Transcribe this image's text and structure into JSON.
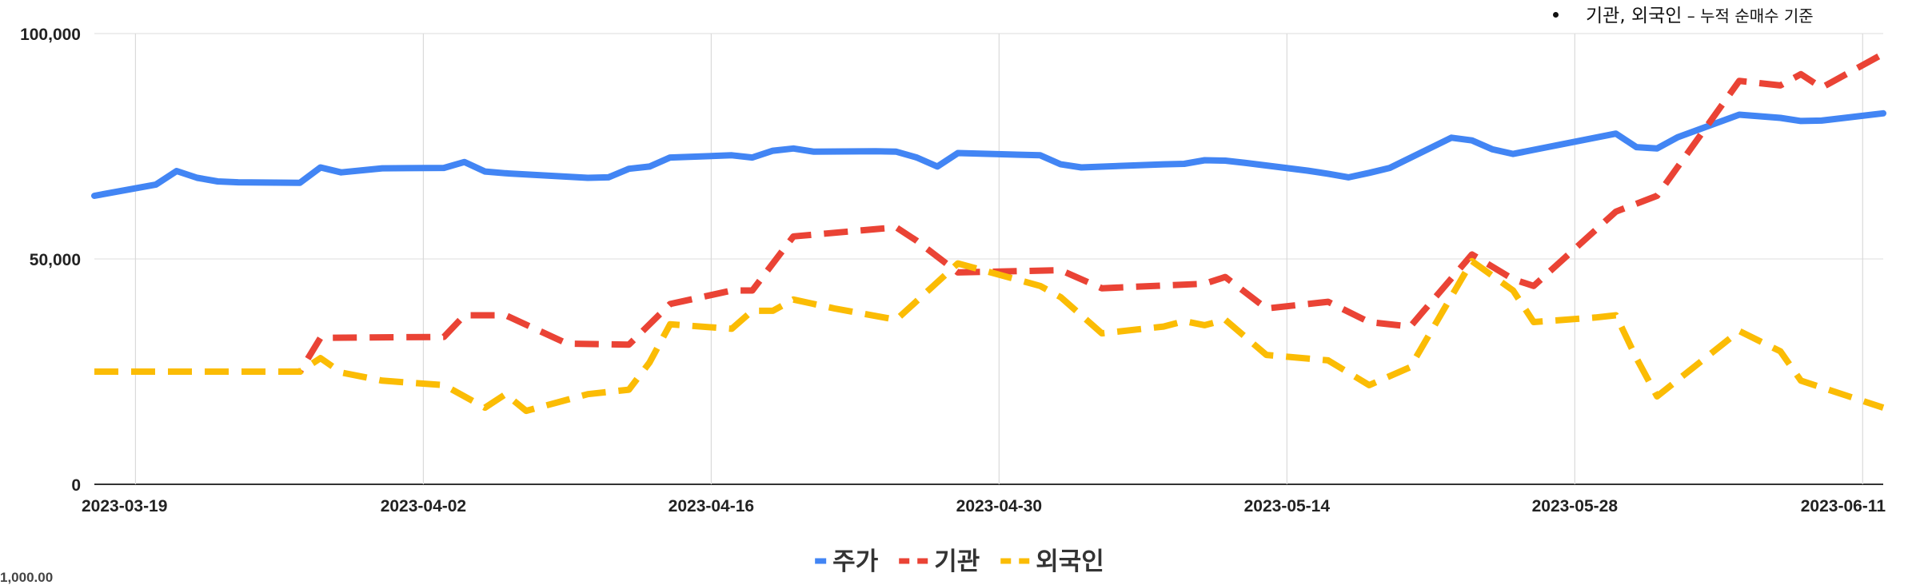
{
  "note": {
    "main": "기관, 외국인",
    "sep": " – ",
    "sub": "누적 순매수 기준"
  },
  "cut_label": "1,000.00",
  "chart_data": {
    "type": "line",
    "title": "",
    "xlabel": "",
    "ylabel": "",
    "ylim": [
      0,
      100000
    ],
    "y_ticks": [
      0,
      50000,
      100000
    ],
    "y_tick_labels": [
      "0",
      "50,000",
      "100,000"
    ],
    "x_range": [
      "2023-03-17",
      "2023-06-12"
    ],
    "x_ticks": [
      "2023-03-19",
      "2023-04-02",
      "2023-04-16",
      "2023-04-30",
      "2023-05-14",
      "2023-05-28",
      "2023-06-11"
    ],
    "grid": true,
    "legend_position": "bottom",
    "series": [
      {
        "name": "주가",
        "color": "#4285F4",
        "dash": "solid",
        "points": [
          [
            "2023-03-17",
            64000
          ],
          [
            "2023-03-20",
            66500
          ],
          [
            "2023-03-21",
            69500
          ],
          [
            "2023-03-22",
            68000
          ],
          [
            "2023-03-23",
            67200
          ],
          [
            "2023-03-24",
            67000
          ],
          [
            "2023-03-27",
            66900
          ],
          [
            "2023-03-28",
            70300
          ],
          [
            "2023-03-29",
            69200
          ],
          [
            "2023-03-31",
            70100
          ],
          [
            "2023-04-03",
            70200
          ],
          [
            "2023-04-04",
            71500
          ],
          [
            "2023-04-05",
            69400
          ],
          [
            "2023-04-06",
            69000
          ],
          [
            "2023-04-10",
            68000
          ],
          [
            "2023-04-11",
            68100
          ],
          [
            "2023-04-12",
            70000
          ],
          [
            "2023-04-13",
            70500
          ],
          [
            "2023-04-14",
            72500
          ],
          [
            "2023-04-17",
            73000
          ],
          [
            "2023-04-18",
            72500
          ],
          [
            "2023-04-19",
            74000
          ],
          [
            "2023-04-20",
            74500
          ],
          [
            "2023-04-21",
            73800
          ],
          [
            "2023-04-24",
            73900
          ],
          [
            "2023-04-25",
            73800
          ],
          [
            "2023-04-26",
            72500
          ],
          [
            "2023-04-27",
            70500
          ],
          [
            "2023-04-28",
            73500
          ],
          [
            "2023-05-02",
            73000
          ],
          [
            "2023-05-03",
            71000
          ],
          [
            "2023-05-04",
            70300
          ],
          [
            "2023-05-08",
            71000
          ],
          [
            "2023-05-09",
            71100
          ],
          [
            "2023-05-10",
            71900
          ],
          [
            "2023-05-11",
            71800
          ],
          [
            "2023-05-12",
            71300
          ],
          [
            "2023-05-15",
            69600
          ],
          [
            "2023-05-16",
            68900
          ],
          [
            "2023-05-17",
            68100
          ],
          [
            "2023-05-18",
            69100
          ],
          [
            "2023-05-19",
            70200
          ],
          [
            "2023-05-22",
            76900
          ],
          [
            "2023-05-23",
            76300
          ],
          [
            "2023-05-24",
            74300
          ],
          [
            "2023-05-25",
            73300
          ],
          [
            "2023-05-26",
            74200
          ],
          [
            "2023-05-30",
            77800
          ],
          [
            "2023-05-31",
            74800
          ],
          [
            "2023-06-01",
            74500
          ],
          [
            "2023-06-02",
            77000
          ],
          [
            "2023-06-05",
            82000
          ],
          [
            "2023-06-07",
            81300
          ],
          [
            "2023-06-08",
            80600
          ],
          [
            "2023-06-09",
            80700
          ],
          [
            "2023-06-12",
            82300
          ]
        ]
      },
      {
        "name": "기관",
        "color": "#EA4335",
        "dash": "dashed",
        "points": [
          [
            "2023-03-17",
            25000
          ],
          [
            "2023-03-27",
            25000
          ],
          [
            "2023-03-28",
            32500
          ],
          [
            "2023-04-03",
            32700
          ],
          [
            "2023-04-04",
            37500
          ],
          [
            "2023-04-06",
            37500
          ],
          [
            "2023-04-09",
            31200
          ],
          [
            "2023-04-12",
            31000
          ],
          [
            "2023-04-14",
            40000
          ],
          [
            "2023-04-17",
            43000
          ],
          [
            "2023-04-18",
            43000
          ],
          [
            "2023-04-20",
            55000
          ],
          [
            "2023-04-25",
            57000
          ],
          [
            "2023-04-26",
            54000
          ],
          [
            "2023-04-28",
            47000
          ],
          [
            "2023-05-03",
            47500
          ],
          [
            "2023-05-05",
            43500
          ],
          [
            "2023-05-10",
            44500
          ],
          [
            "2023-05-11",
            46000
          ],
          [
            "2023-05-13",
            39000
          ],
          [
            "2023-05-16",
            40500
          ],
          [
            "2023-05-18",
            36000
          ],
          [
            "2023-05-20",
            35000
          ],
          [
            "2023-05-23",
            51000
          ],
          [
            "2023-05-25",
            45500
          ],
          [
            "2023-05-26",
            44000
          ],
          [
            "2023-05-30",
            60500
          ],
          [
            "2023-06-01",
            64000
          ],
          [
            "2023-06-05",
            89500
          ],
          [
            "2023-06-07",
            88500
          ],
          [
            "2023-06-08",
            91000
          ],
          [
            "2023-06-09",
            88000
          ],
          [
            "2023-06-12",
            95500
          ]
        ]
      },
      {
        "name": "외국인",
        "color": "#FBBC04",
        "dash": "dashed",
        "points": [
          [
            "2023-03-17",
            25000
          ],
          [
            "2023-03-27",
            25000
          ],
          [
            "2023-03-28",
            28000
          ],
          [
            "2023-03-29",
            24800
          ],
          [
            "2023-03-31",
            23000
          ],
          [
            "2023-04-03",
            22000
          ],
          [
            "2023-04-05",
            17000
          ],
          [
            "2023-04-06",
            20000
          ],
          [
            "2023-04-07",
            16300
          ],
          [
            "2023-04-10",
            20000
          ],
          [
            "2023-04-12",
            21000
          ],
          [
            "2023-04-13",
            27000
          ],
          [
            "2023-04-14",
            35500
          ],
          [
            "2023-04-17",
            34500
          ],
          [
            "2023-04-18",
            38500
          ],
          [
            "2023-04-19",
            38500
          ],
          [
            "2023-04-20",
            41000
          ],
          [
            "2023-04-22",
            39000
          ],
          [
            "2023-04-25",
            36500
          ],
          [
            "2023-04-28",
            49000
          ],
          [
            "2023-05-02",
            44000
          ],
          [
            "2023-05-03",
            41500
          ],
          [
            "2023-05-05",
            33500
          ],
          [
            "2023-05-08",
            35000
          ],
          [
            "2023-05-09",
            36200
          ],
          [
            "2023-05-10",
            35300
          ],
          [
            "2023-05-11",
            36500
          ],
          [
            "2023-05-13",
            28700
          ],
          [
            "2023-05-16",
            27500
          ],
          [
            "2023-05-18",
            22000
          ],
          [
            "2023-05-20",
            26000
          ],
          [
            "2023-05-23",
            49500
          ],
          [
            "2023-05-25",
            43000
          ],
          [
            "2023-05-26",
            36000
          ],
          [
            "2023-05-29",
            37000
          ],
          [
            "2023-05-30",
            37500
          ],
          [
            "2023-05-31",
            28000
          ],
          [
            "2023-06-01",
            19500
          ],
          [
            "2023-06-05",
            34000
          ],
          [
            "2023-06-07",
            29500
          ],
          [
            "2023-06-08",
            23000
          ],
          [
            "2023-06-12",
            17000
          ]
        ]
      }
    ]
  }
}
